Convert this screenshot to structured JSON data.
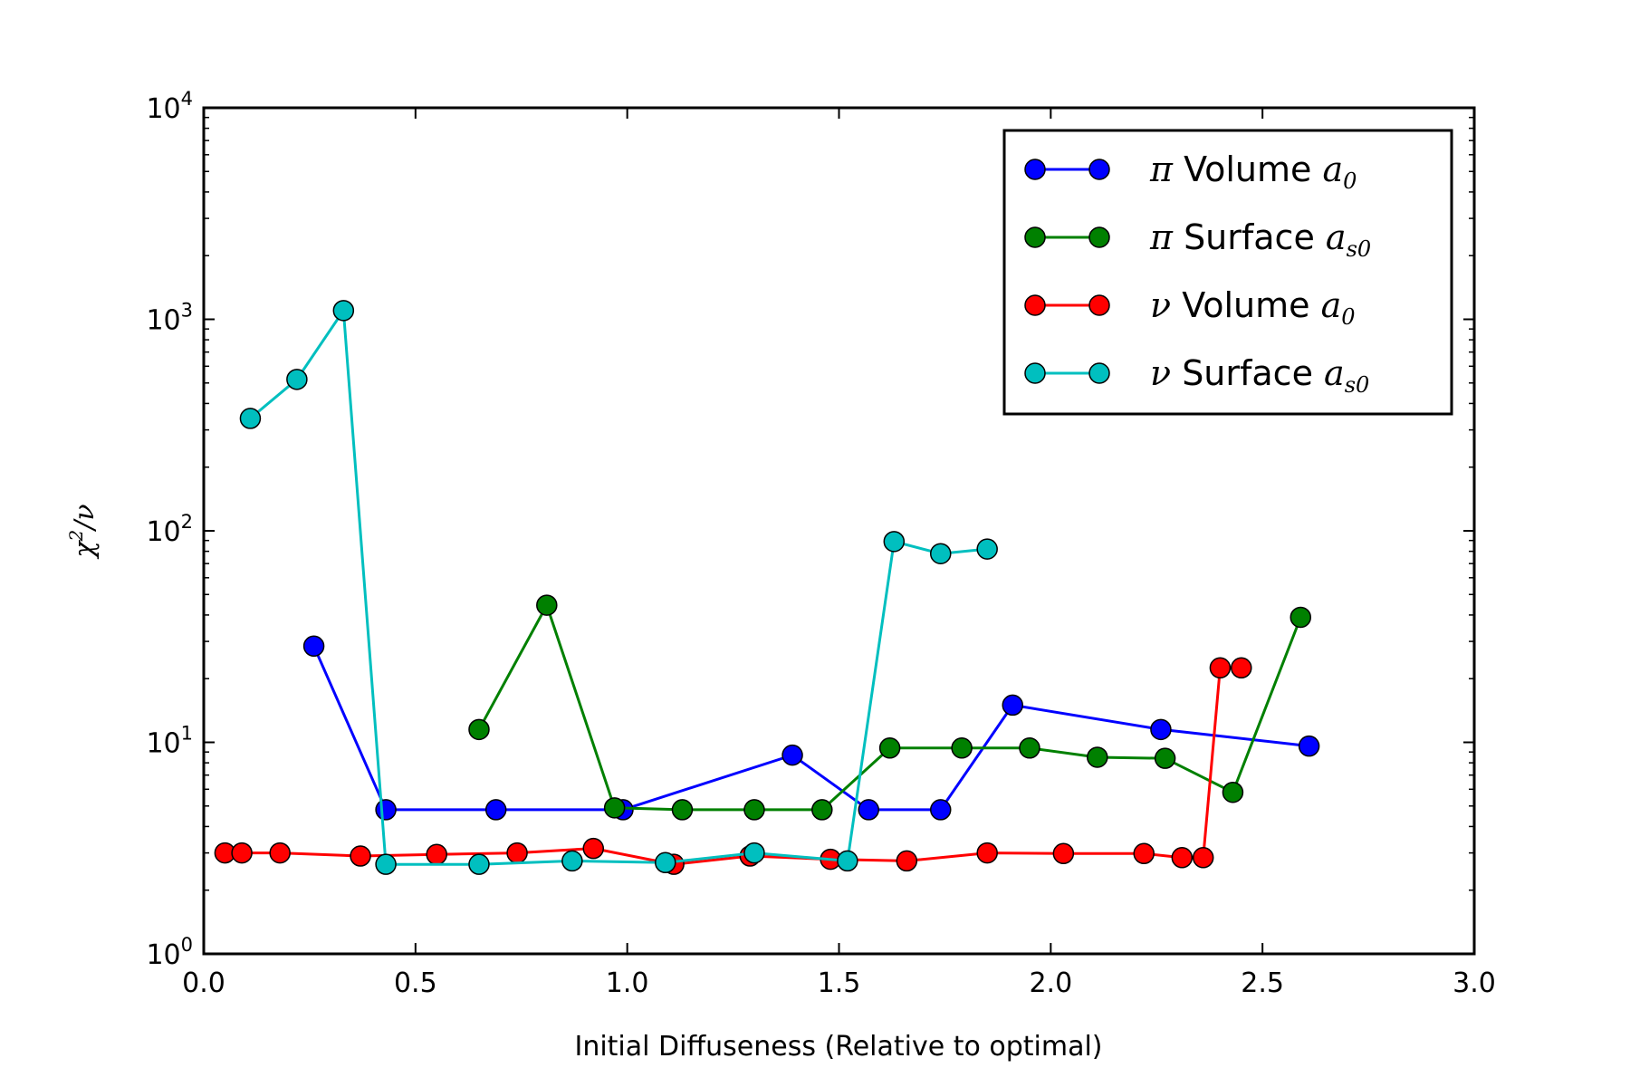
{
  "chart_data": {
    "type": "line",
    "xlabel": "Initial Diffuseness (Relative to optimal)",
    "ylabel": {
      "base": "χ",
      "sup": "2",
      "rest": "/ν"
    },
    "xlim": [
      0.0,
      3.0
    ],
    "ylim": [
      1,
      10000
    ],
    "yscale": "log",
    "x_ticks": [
      "0.0",
      "0.5",
      "1.0",
      "1.5",
      "2.0",
      "2.5",
      "3.0"
    ],
    "y_ticks": [
      {
        "base": "10",
        "exp": "0"
      },
      {
        "base": "10",
        "exp": "1"
      },
      {
        "base": "10",
        "exp": "2"
      },
      {
        "base": "10",
        "exp": "3"
      },
      {
        "base": "10",
        "exp": "4"
      }
    ],
    "grid": false,
    "legend_position": "top-right",
    "series": [
      {
        "name": "π Volume a0",
        "label": {
          "symbol": "π",
          "text": "Volume",
          "sym": "a",
          "sub": "0"
        },
        "color": "#0000ff",
        "segments": [
          [
            [
              0.26,
              28.5
            ],
            [
              0.43,
              4.8
            ],
            [
              0.69,
              4.8
            ],
            [
              0.99,
              4.8
            ],
            [
              1.39,
              8.7
            ],
            [
              1.57,
              4.8
            ],
            [
              1.74,
              4.8
            ],
            [
              1.91,
              15.0
            ],
            [
              2.26,
              11.5
            ],
            [
              2.61,
              9.6
            ]
          ]
        ]
      },
      {
        "name": "π Surface as0",
        "label": {
          "symbol": "π",
          "text": "Surface",
          "sym": "a",
          "sub": "s0"
        },
        "color": "#008000",
        "segments": [
          [
            [
              0.65,
              11.5
            ],
            [
              0.81,
              44.5
            ],
            [
              0.97,
              4.9
            ],
            [
              1.13,
              4.8
            ],
            [
              1.3,
              4.8
            ],
            [
              1.46,
              4.8
            ],
            [
              1.62,
              9.4
            ],
            [
              1.79,
              9.4
            ],
            [
              1.95,
              9.4
            ],
            [
              2.11,
              8.5
            ],
            [
              2.27,
              8.4
            ],
            [
              2.43,
              5.8
            ],
            [
              2.59,
              39.0
            ]
          ]
        ]
      },
      {
        "name": "ν Volume a0",
        "label": {
          "symbol": "ν",
          "text": "Volume",
          "sym": "a",
          "sub": "0"
        },
        "color": "#ff0000",
        "segments": [
          [
            [
              0.05,
              3.0
            ],
            [
              0.09,
              3.0
            ],
            [
              0.18,
              3.0
            ],
            [
              0.37,
              2.9
            ],
            [
              0.55,
              2.95
            ],
            [
              0.74,
              3.0
            ],
            [
              0.92,
              3.15
            ],
            [
              1.11,
              2.65
            ],
            [
              1.29,
              2.9
            ],
            [
              1.48,
              2.8
            ],
            [
              1.66,
              2.75
            ],
            [
              1.85,
              3.0
            ],
            [
              2.03,
              2.98
            ],
            [
              2.22,
              2.98
            ],
            [
              2.31,
              2.85
            ],
            [
              2.36,
              2.85
            ],
            [
              2.4,
              22.5
            ],
            [
              2.45,
              22.5
            ]
          ]
        ]
      },
      {
        "name": "ν Surface as0",
        "label": {
          "symbol": "ν",
          "text": "Surface",
          "sym": "a",
          "sub": "s0"
        },
        "color": "#00bfbf",
        "segments": [
          [
            [
              0.11,
              340
            ],
            [
              0.22,
              520
            ],
            [
              0.33,
              1100
            ],
            [
              0.43,
              2.65
            ],
            [
              0.65,
              2.65
            ],
            [
              0.87,
              2.75
            ],
            [
              1.09,
              2.7
            ],
            [
              1.3,
              3.0
            ],
            [
              1.52,
              2.75
            ],
            [
              1.63,
              89
            ],
            [
              1.74,
              78
            ],
            [
              1.85,
              82
            ]
          ]
        ]
      }
    ]
  }
}
